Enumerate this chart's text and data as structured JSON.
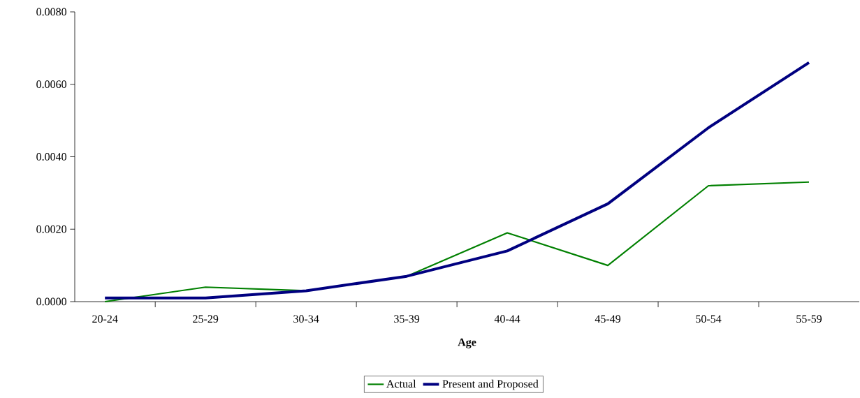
{
  "chart_data": {
    "type": "line",
    "xlabel": "Age",
    "categories": [
      "20-24",
      "25-29",
      "30-34",
      "35-39",
      "40-44",
      "45-49",
      "50-54",
      "55-59"
    ],
    "series": [
      {
        "name": "Actual",
        "color": "#008000",
        "values": [
          0.0,
          0.0004,
          0.0003,
          0.0007,
          0.0019,
          0.001,
          0.0032,
          0.0033
        ]
      },
      {
        "name": "Present and Proposed",
        "color": "#000080",
        "values": [
          0.0001,
          0.0001,
          0.0003,
          0.0007,
          0.0014,
          0.0027,
          0.0048,
          0.0066
        ]
      }
    ],
    "ylim": [
      0,
      0.008
    ],
    "yticks": [
      {
        "value": 0,
        "label": "0.0000"
      },
      {
        "value": 0.002,
        "label": "0.0020"
      },
      {
        "value": 0.004,
        "label": "0.0040"
      },
      {
        "value": 0.006,
        "label": "0.0060"
      },
      {
        "value": 0.008,
        "label": "0.0080"
      }
    ],
    "legend": "bottom",
    "grid": false,
    "marker": "none",
    "line_style": "solid"
  }
}
